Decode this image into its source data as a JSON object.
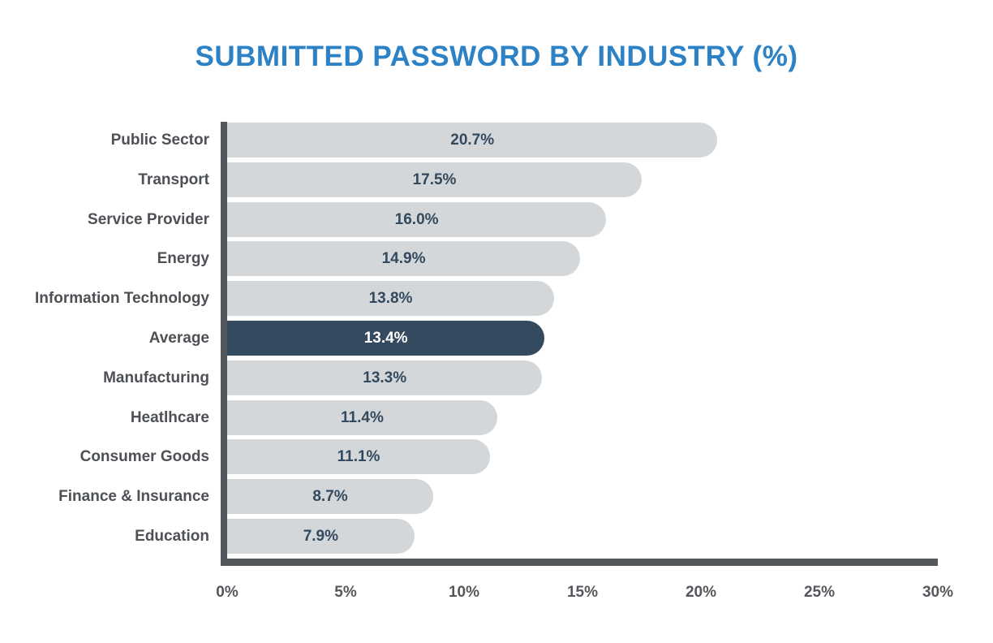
{
  "chart_data": {
    "type": "bar",
    "orientation": "horizontal",
    "title": "SUBMITTED PASSWORD BY INDUSTRY (%)",
    "categories": [
      "Public Sector",
      "Transport",
      "Service Provider",
      "Energy",
      "Information Technology",
      "Average",
      "Manufacturing",
      "Heatlhcare",
      "Consumer Goods",
      "Finance & Insurance",
      "Education"
    ],
    "values": [
      20.7,
      17.5,
      16.0,
      14.9,
      13.8,
      13.4,
      13.3,
      11.4,
      11.1,
      8.7,
      7.9
    ],
    "value_labels": [
      "20.7%",
      "17.5%",
      "16.0%",
      "14.9%",
      "13.8%",
      "13.4%",
      "13.3%",
      "11.4%",
      "11.1%",
      "8.7%",
      "7.9%"
    ],
    "highlight_index": 5,
    "highlight_category": "Average",
    "x_ticks": [
      {
        "value": 0,
        "label": "0%"
      },
      {
        "value": 5,
        "label": "5%"
      },
      {
        "value": 10,
        "label": "10%"
      },
      {
        "value": 15,
        "label": "15%"
      },
      {
        "value": 20,
        "label": "20%"
      },
      {
        "value": 25,
        "label": "25%"
      },
      {
        "value": 30,
        "label": "30%"
      }
    ],
    "xlim": [
      0,
      30
    ],
    "grid": false,
    "legend": null,
    "colors": {
      "background": "#ffffff",
      "title": "#2d81c5",
      "bar": "#d4d7d9",
      "highlight_bar": "#344a5e",
      "value_text": "#32495e",
      "highlight_value_text": "#ffffff",
      "category_text": "#4d5054",
      "axis": "#54575b",
      "tick_text": "#54575b"
    }
  }
}
